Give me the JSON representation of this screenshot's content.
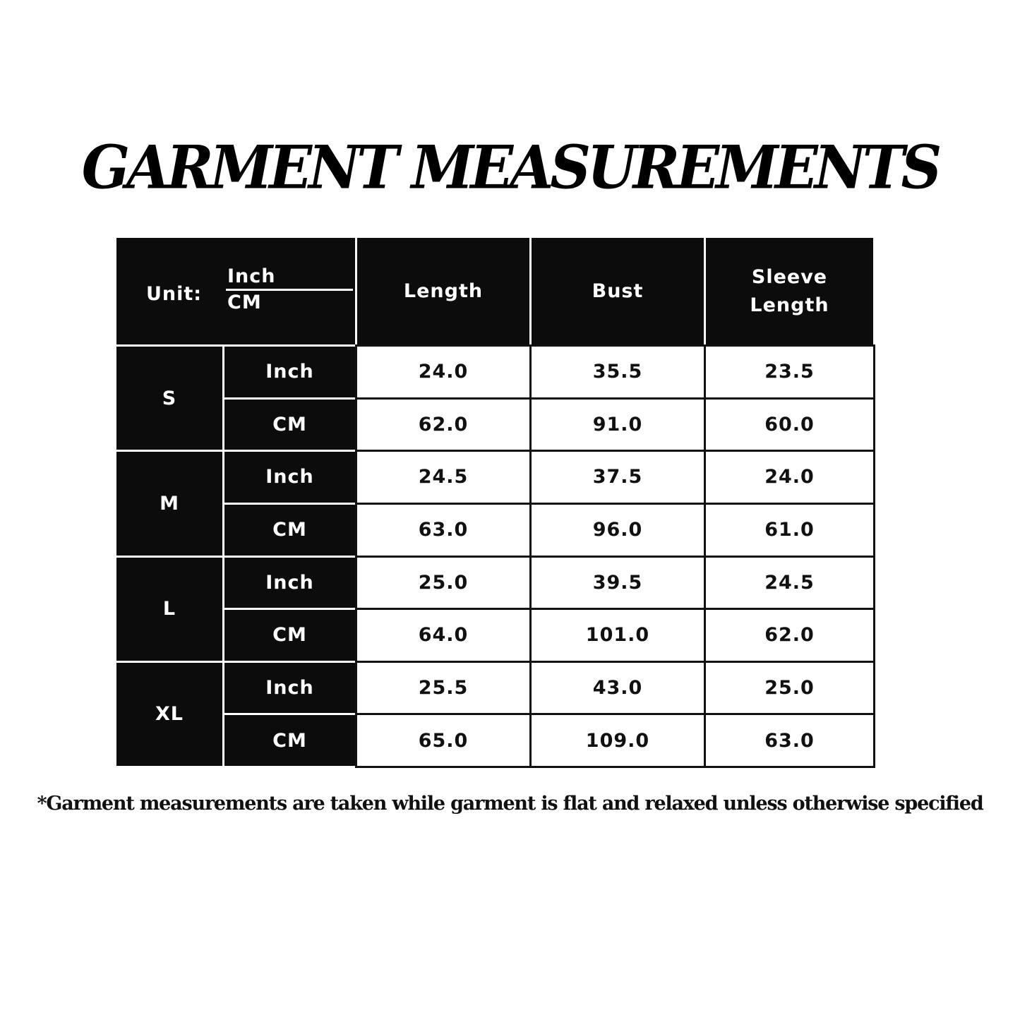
{
  "title": "GARMENT MEASUREMENTS",
  "header": {
    "unit_label": "Unit:",
    "unit_top": "Inch",
    "unit_bottom": "CM",
    "columns": [
      "Length",
      "Bust",
      "Sleeve Length"
    ]
  },
  "sizes": [
    {
      "size": "S",
      "rows": [
        {
          "unit": "Inch",
          "values": [
            "24.0",
            "35.5",
            "23.5"
          ]
        },
        {
          "unit": "CM",
          "values": [
            "62.0",
            "91.0",
            "60.0"
          ]
        }
      ]
    },
    {
      "size": "M",
      "rows": [
        {
          "unit": "Inch",
          "values": [
            "24.5",
            "37.5",
            "24.0"
          ]
        },
        {
          "unit": "CM",
          "values": [
            "63.0",
            "96.0",
            "61.0"
          ]
        }
      ]
    },
    {
      "size": "L",
      "rows": [
        {
          "unit": "Inch",
          "values": [
            "25.0",
            "39.5",
            "24.5"
          ]
        },
        {
          "unit": "CM",
          "values": [
            "64.0",
            "101.0",
            "62.0"
          ]
        }
      ]
    },
    {
      "size": "XL",
      "rows": [
        {
          "unit": "Inch",
          "values": [
            "25.5",
            "43.0",
            "25.0"
          ]
        },
        {
          "unit": "CM",
          "values": [
            "65.0",
            "109.0",
            "63.0"
          ]
        }
      ]
    }
  ],
  "footnote": "*Garment measurements are taken while garment is flat and relaxed unless otherwise specified"
}
